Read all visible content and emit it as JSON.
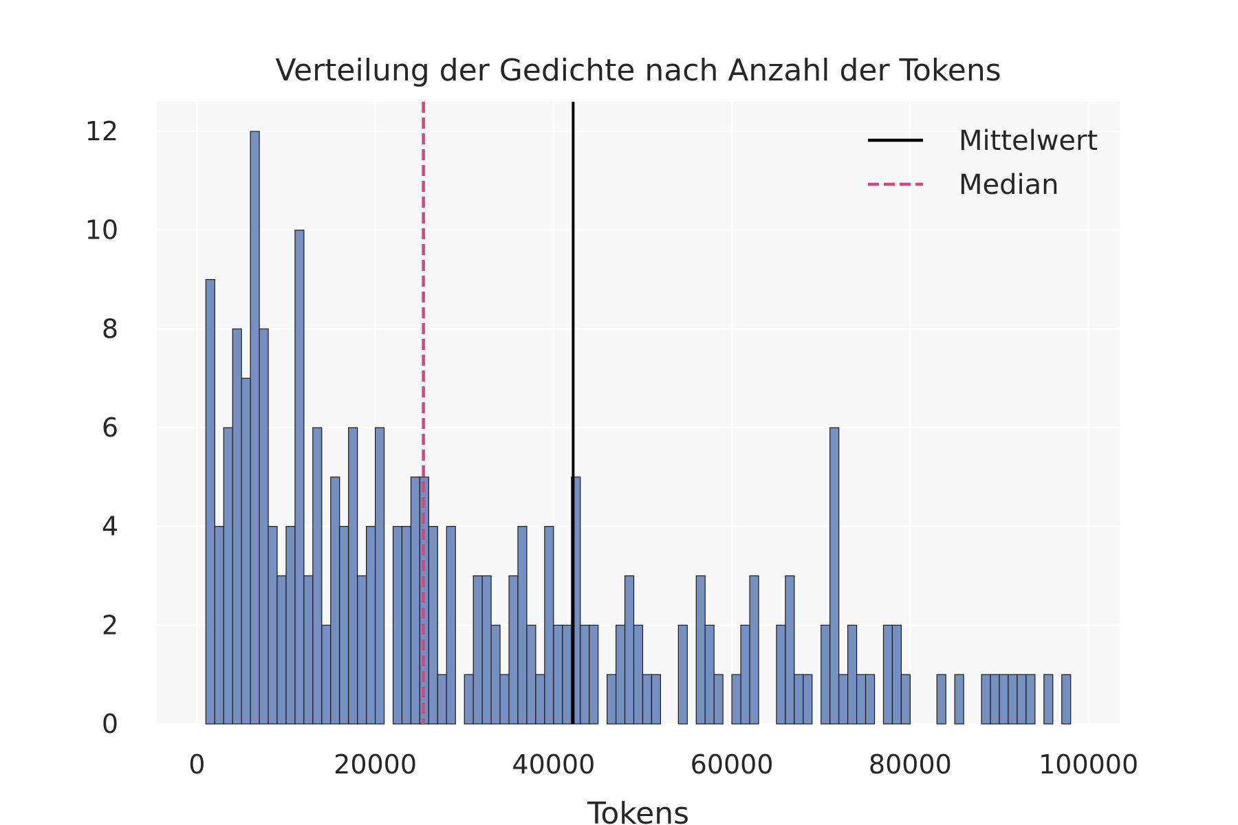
{
  "chart_data": {
    "type": "bar",
    "title": "Verteilung der Gedichte nach Anzahl der Tokens",
    "xlabel": "Tokens",
    "ylabel": "",
    "xlim": [
      -4500,
      103500
    ],
    "ylim": [
      0,
      12.6
    ],
    "xticks": [
      0,
      20000,
      40000,
      60000,
      80000,
      100000
    ],
    "yticks": [
      0,
      2,
      4,
      6,
      8,
      10,
      12
    ],
    "grid": true,
    "bin_start": 1000,
    "bin_width": 1000,
    "counts": [
      9,
      4,
      6,
      8,
      7,
      12,
      8,
      4,
      3,
      4,
      10,
      3,
      6,
      2,
      5,
      4,
      6,
      3,
      4,
      6,
      0,
      4,
      4,
      5,
      5,
      4,
      1,
      4,
      0,
      1,
      3,
      3,
      2,
      1,
      3,
      4,
      2,
      1,
      4,
      2,
      2,
      5,
      2,
      2,
      0,
      1,
      2,
      3,
      2,
      1,
      1,
      0,
      0,
      2,
      0,
      3,
      2,
      1,
      0,
      1,
      2,
      3,
      0,
      0,
      2,
      3,
      1,
      1,
      0,
      2,
      6,
      1,
      2,
      1,
      1,
      0,
      2,
      2,
      1,
      0,
      0,
      0,
      1,
      0,
      1,
      0,
      0,
      1,
      1,
      1,
      1,
      1,
      1,
      0,
      1,
      0,
      1
    ],
    "series": [
      {
        "name": "Mittelwert",
        "value": 42200,
        "color": "#000000",
        "style": "solid"
      },
      {
        "name": "Median",
        "value": 25400,
        "color": "#d6457e",
        "style": "dashed"
      }
    ],
    "bar_color": "#7590c0",
    "legend_position": "top-right"
  }
}
